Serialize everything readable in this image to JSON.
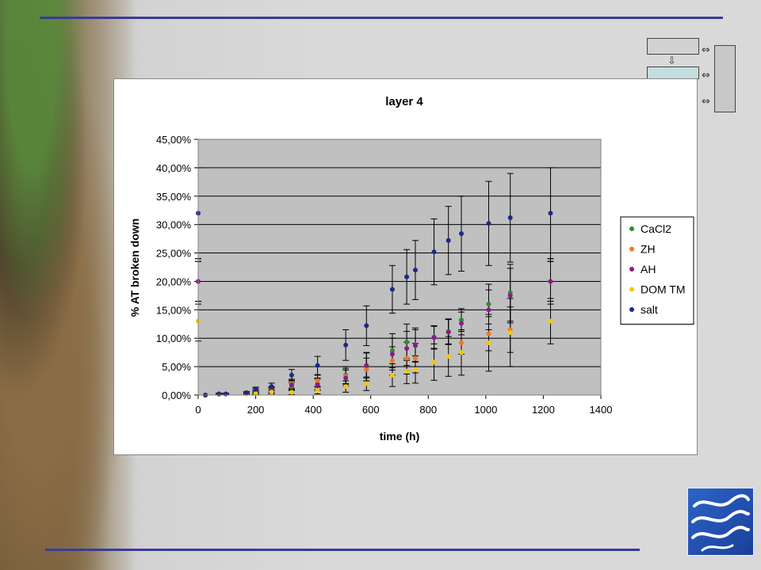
{
  "chart_data": {
    "type": "scatter",
    "title": "layer 4",
    "xlabel": "time (h)",
    "ylabel": "% AT broken down",
    "xlim": [
      0,
      1400
    ],
    "ylim": [
      0,
      0.45
    ],
    "x_ticks": [
      "0",
      "200",
      "400",
      "600",
      "800",
      "1000",
      "1200",
      "1400"
    ],
    "y_ticks": [
      "0,00%",
      "5,00%",
      "10,00%",
      "15,00%",
      "20,00%",
      "25,00%",
      "30,00%",
      "35,00%",
      "40,00%",
      "45,00%"
    ],
    "grid": "horizontal",
    "legend_position": "right",
    "series": [
      {
        "name": "CaCl2",
        "color": "#2e8b2e",
        "x": [
          0,
          25,
          72,
          96,
          168,
          200,
          255,
          325,
          415,
          513,
          585,
          675,
          725,
          755,
          820,
          870,
          915,
          1010,
          1085,
          1225
        ],
        "y": [
          0.2,
          0.0,
          0.002,
          0.002,
          0.004,
          0.008,
          0.01,
          0.015,
          0.02,
          0.035,
          0.05,
          0.078,
          0.093,
          0.088,
          0.102,
          0.112,
          0.132,
          0.16,
          0.18,
          0.2
        ],
        "err": [
          0.04,
          0,
          0.001,
          0.001,
          0.002,
          0.004,
          0.005,
          0.007,
          0.01,
          0.015,
          0.025,
          0.03,
          0.032,
          0.03,
          0.02,
          0.022,
          0.02,
          0.035,
          0.05,
          0.04
        ]
      },
      {
        "name": "ZH",
        "color": "#f07820",
        "x": [
          0,
          25,
          72,
          96,
          168,
          200,
          255,
          325,
          415,
          513,
          585,
          675,
          725,
          755,
          820,
          870,
          915,
          1010,
          1085,
          1225
        ],
        "y": [
          0.2,
          0.0,
          0.002,
          0.002,
          0.003,
          0.005,
          0.008,
          0.02,
          0.025,
          0.033,
          0.045,
          0.06,
          0.065,
          0.065,
          0.101,
          0.111,
          0.092,
          0.108,
          0.115,
          0.2
        ],
        "err": [
          0.035,
          0,
          0.001,
          0.001,
          0.002,
          0.003,
          0.004,
          0.008,
          0.01,
          0.014,
          0.02,
          0.025,
          0.028,
          0.026,
          0.02,
          0.022,
          0.02,
          0.03,
          0.04,
          0.035
        ]
      },
      {
        "name": "AH",
        "color": "#8b1a8b",
        "x": [
          0,
          25,
          72,
          96,
          168,
          200,
          255,
          325,
          415,
          513,
          585,
          675,
          725,
          755,
          820,
          870,
          915,
          1010,
          1085,
          1225
        ],
        "y": [
          0.2,
          0.0,
          0.002,
          0.002,
          0.004,
          0.006,
          0.009,
          0.018,
          0.018,
          0.03,
          0.052,
          0.072,
          0.082,
          0.087,
          0.101,
          0.111,
          0.126,
          0.15,
          0.175,
          0.2
        ],
        "err": [
          0.035,
          0,
          0.001,
          0.001,
          0.002,
          0.003,
          0.004,
          0.008,
          0.01,
          0.014,
          0.022,
          0.028,
          0.03,
          0.028,
          0.02,
          0.022,
          0.02,
          0.035,
          0.048,
          0.035
        ]
      },
      {
        "name": "DOM TM",
        "color": "#f5c800",
        "x": [
          0,
          25,
          72,
          96,
          168,
          200,
          255,
          325,
          415,
          513,
          585,
          675,
          725,
          755,
          820,
          870,
          915,
          1010,
          1085,
          1225
        ],
        "y": [
          0.13,
          0.0,
          0.001,
          0.002,
          0.002,
          0.003,
          0.005,
          0.005,
          0.008,
          0.015,
          0.02,
          0.035,
          0.042,
          0.045,
          0.058,
          0.068,
          0.075,
          0.092,
          0.11,
          0.13
        ],
        "err": [
          0.035,
          0,
          0.001,
          0.001,
          0.001,
          0.002,
          0.003,
          0.004,
          0.006,
          0.01,
          0.012,
          0.02,
          0.022,
          0.024,
          0.032,
          0.035,
          0.04,
          0.05,
          0.06,
          0.04
        ]
      },
      {
        "name": "salt",
        "color": "#1a2a8a",
        "x": [
          0,
          25,
          72,
          96,
          168,
          200,
          255,
          325,
          415,
          513,
          585,
          675,
          725,
          755,
          820,
          870,
          915,
          1010,
          1085,
          1225
        ],
        "y": [
          0.32,
          0.0,
          0.002,
          0.002,
          0.004,
          0.01,
          0.015,
          0.035,
          0.052,
          0.088,
          0.122,
          0.186,
          0.208,
          0.22,
          0.252,
          0.272,
          0.284,
          0.302,
          0.312,
          0.32
        ],
        "err": [
          0.08,
          0,
          0.001,
          0.001,
          0.002,
          0.004,
          0.006,
          0.01,
          0.016,
          0.027,
          0.035,
          0.042,
          0.048,
          0.052,
          0.058,
          0.06,
          0.066,
          0.074,
          0.078,
          0.08
        ]
      }
    ]
  }
}
